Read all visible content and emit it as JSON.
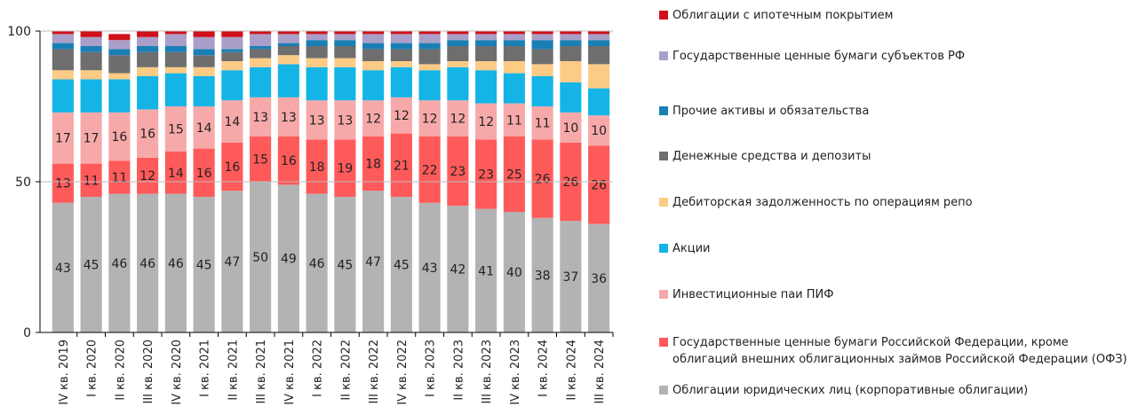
{
  "chart_data": {
    "type": "stacked-bar",
    "categories": [
      "IV кв. 2019",
      "I кв. 2020",
      "II кв. 2020",
      "III кв. 2020",
      "IV кв. 2020",
      "I кв. 2021",
      "II кв. 2021",
      "III кв. 2021",
      "IV кв. 2021",
      "I кв. 2022",
      "II кв. 2022",
      "III кв. 2022",
      "IV кв. 2022",
      "I кв. 2023",
      "II кв. 2023",
      "III кв. 2023",
      "IV кв. 2023",
      "I кв. 2024",
      "II кв. 2024",
      "III кв. 2024"
    ],
    "ylim": [
      0,
      100
    ],
    "yticks": [
      0,
      50,
      100
    ],
    "grid": true,
    "series": [
      {
        "name": "Облигации юридических лиц (корпоративные облигации)",
        "color": "#b3b3b3",
        "show_labels": true,
        "values": [
          43,
          45,
          46,
          46,
          46,
          45,
          47,
          50,
          49,
          46,
          45,
          47,
          45,
          43,
          42,
          41,
          40,
          38,
          37,
          36
        ]
      },
      {
        "name": "Государственные ценные бумаги Российской Федерации, кроме облигаций внешних облигационных займов Российской Федерации (ОФЗ)",
        "color": "#ff5a5a",
        "show_labels": true,
        "values": [
          13,
          11,
          11,
          12,
          14,
          16,
          16,
          15,
          16,
          18,
          19,
          18,
          21,
          22,
          23,
          23,
          25,
          26,
          26,
          26
        ]
      },
      {
        "name": "Инвестиционные паи ПИФ",
        "color": "#f7a9a9",
        "show_labels": true,
        "values": [
          17,
          17,
          16,
          16,
          15,
          14,
          14,
          13,
          13,
          13,
          13,
          12,
          12,
          12,
          12,
          12,
          11,
          11,
          10,
          10
        ]
      },
      {
        "name": "Акции",
        "color": "#14b4e6",
        "show_labels": false,
        "values": [
          11,
          11,
          11,
          11,
          11,
          10,
          10,
          10,
          11,
          11,
          11,
          10,
          10,
          10,
          11,
          11,
          10,
          10,
          10,
          9
        ]
      },
      {
        "name": "Дебиторская задолженность по операциям репо",
        "color": "#fccb85",
        "show_labels": false,
        "values": [
          3,
          3,
          2,
          3,
          2,
          3,
          3,
          3,
          3,
          3,
          3,
          3,
          2,
          2,
          2,
          3,
          4,
          4,
          7,
          8
        ]
      },
      {
        "name": "Денежные средства и депозиты",
        "color": "#6e6e6e",
        "show_labels": false,
        "values": [
          7,
          6,
          6,
          5,
          5,
          4,
          3,
          3,
          3,
          4,
          4,
          4,
          4,
          5,
          5,
          5,
          5,
          5,
          5,
          6
        ]
      },
      {
        "name": "Прочие активы и обязательства",
        "color": "#1a7fb5",
        "show_labels": false,
        "values": [
          2,
          2,
          2,
          2,
          2,
          2,
          1,
          1,
          1,
          2,
          2,
          2,
          2,
          2,
          2,
          2,
          2,
          3,
          2,
          2
        ]
      },
      {
        "name": "Государственные ценные бумаги субъектов РФ",
        "color": "#a99fc9",
        "show_labels": false,
        "values": [
          3,
          3,
          3,
          3,
          4,
          4,
          4,
          4,
          3,
          2,
          2,
          3,
          3,
          3,
          2,
          2,
          2,
          2,
          2,
          2
        ]
      },
      {
        "name": "Облигации с ипотечным покрытием",
        "color": "#d0101a",
        "show_labels": false,
        "values": [
          1,
          2,
          2,
          2,
          1,
          2,
          2,
          1,
          1,
          1,
          1,
          1,
          1,
          1,
          1,
          1,
          1,
          1,
          1,
          1
        ]
      }
    ]
  }
}
